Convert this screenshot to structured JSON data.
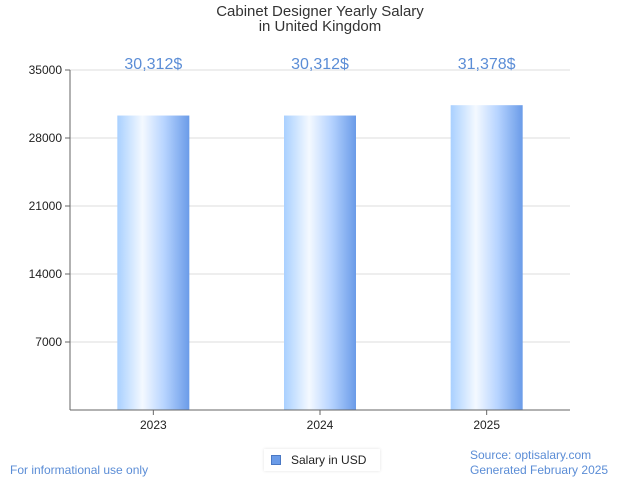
{
  "chart_data": {
    "type": "bar",
    "title_line1": "Cabinet Designer Yearly Salary",
    "title_line2": "in United Kingdom",
    "categories": [
      "2023",
      "2024",
      "2025"
    ],
    "series": [
      {
        "name": "Salary in USD",
        "values": [
          30312,
          30312,
          31378
        ],
        "labels": [
          "30,312$",
          "30,312$",
          "31,378$"
        ]
      }
    ],
    "ylim": [
      0,
      35000
    ],
    "yticks": [
      7000,
      14000,
      21000,
      28000,
      35000
    ],
    "grid": true,
    "legend_position": "bottom-center"
  },
  "colors": {
    "bar_light": "#e6f2ff",
    "bar_dark": "#6a9be8",
    "data_label": "#5b8dd6",
    "axis": "#666666",
    "grid": "#dddddd"
  },
  "footer": {
    "left_text": "For informational use only",
    "source": "Source: optisalary.com",
    "generated": "Generated February 2025"
  }
}
